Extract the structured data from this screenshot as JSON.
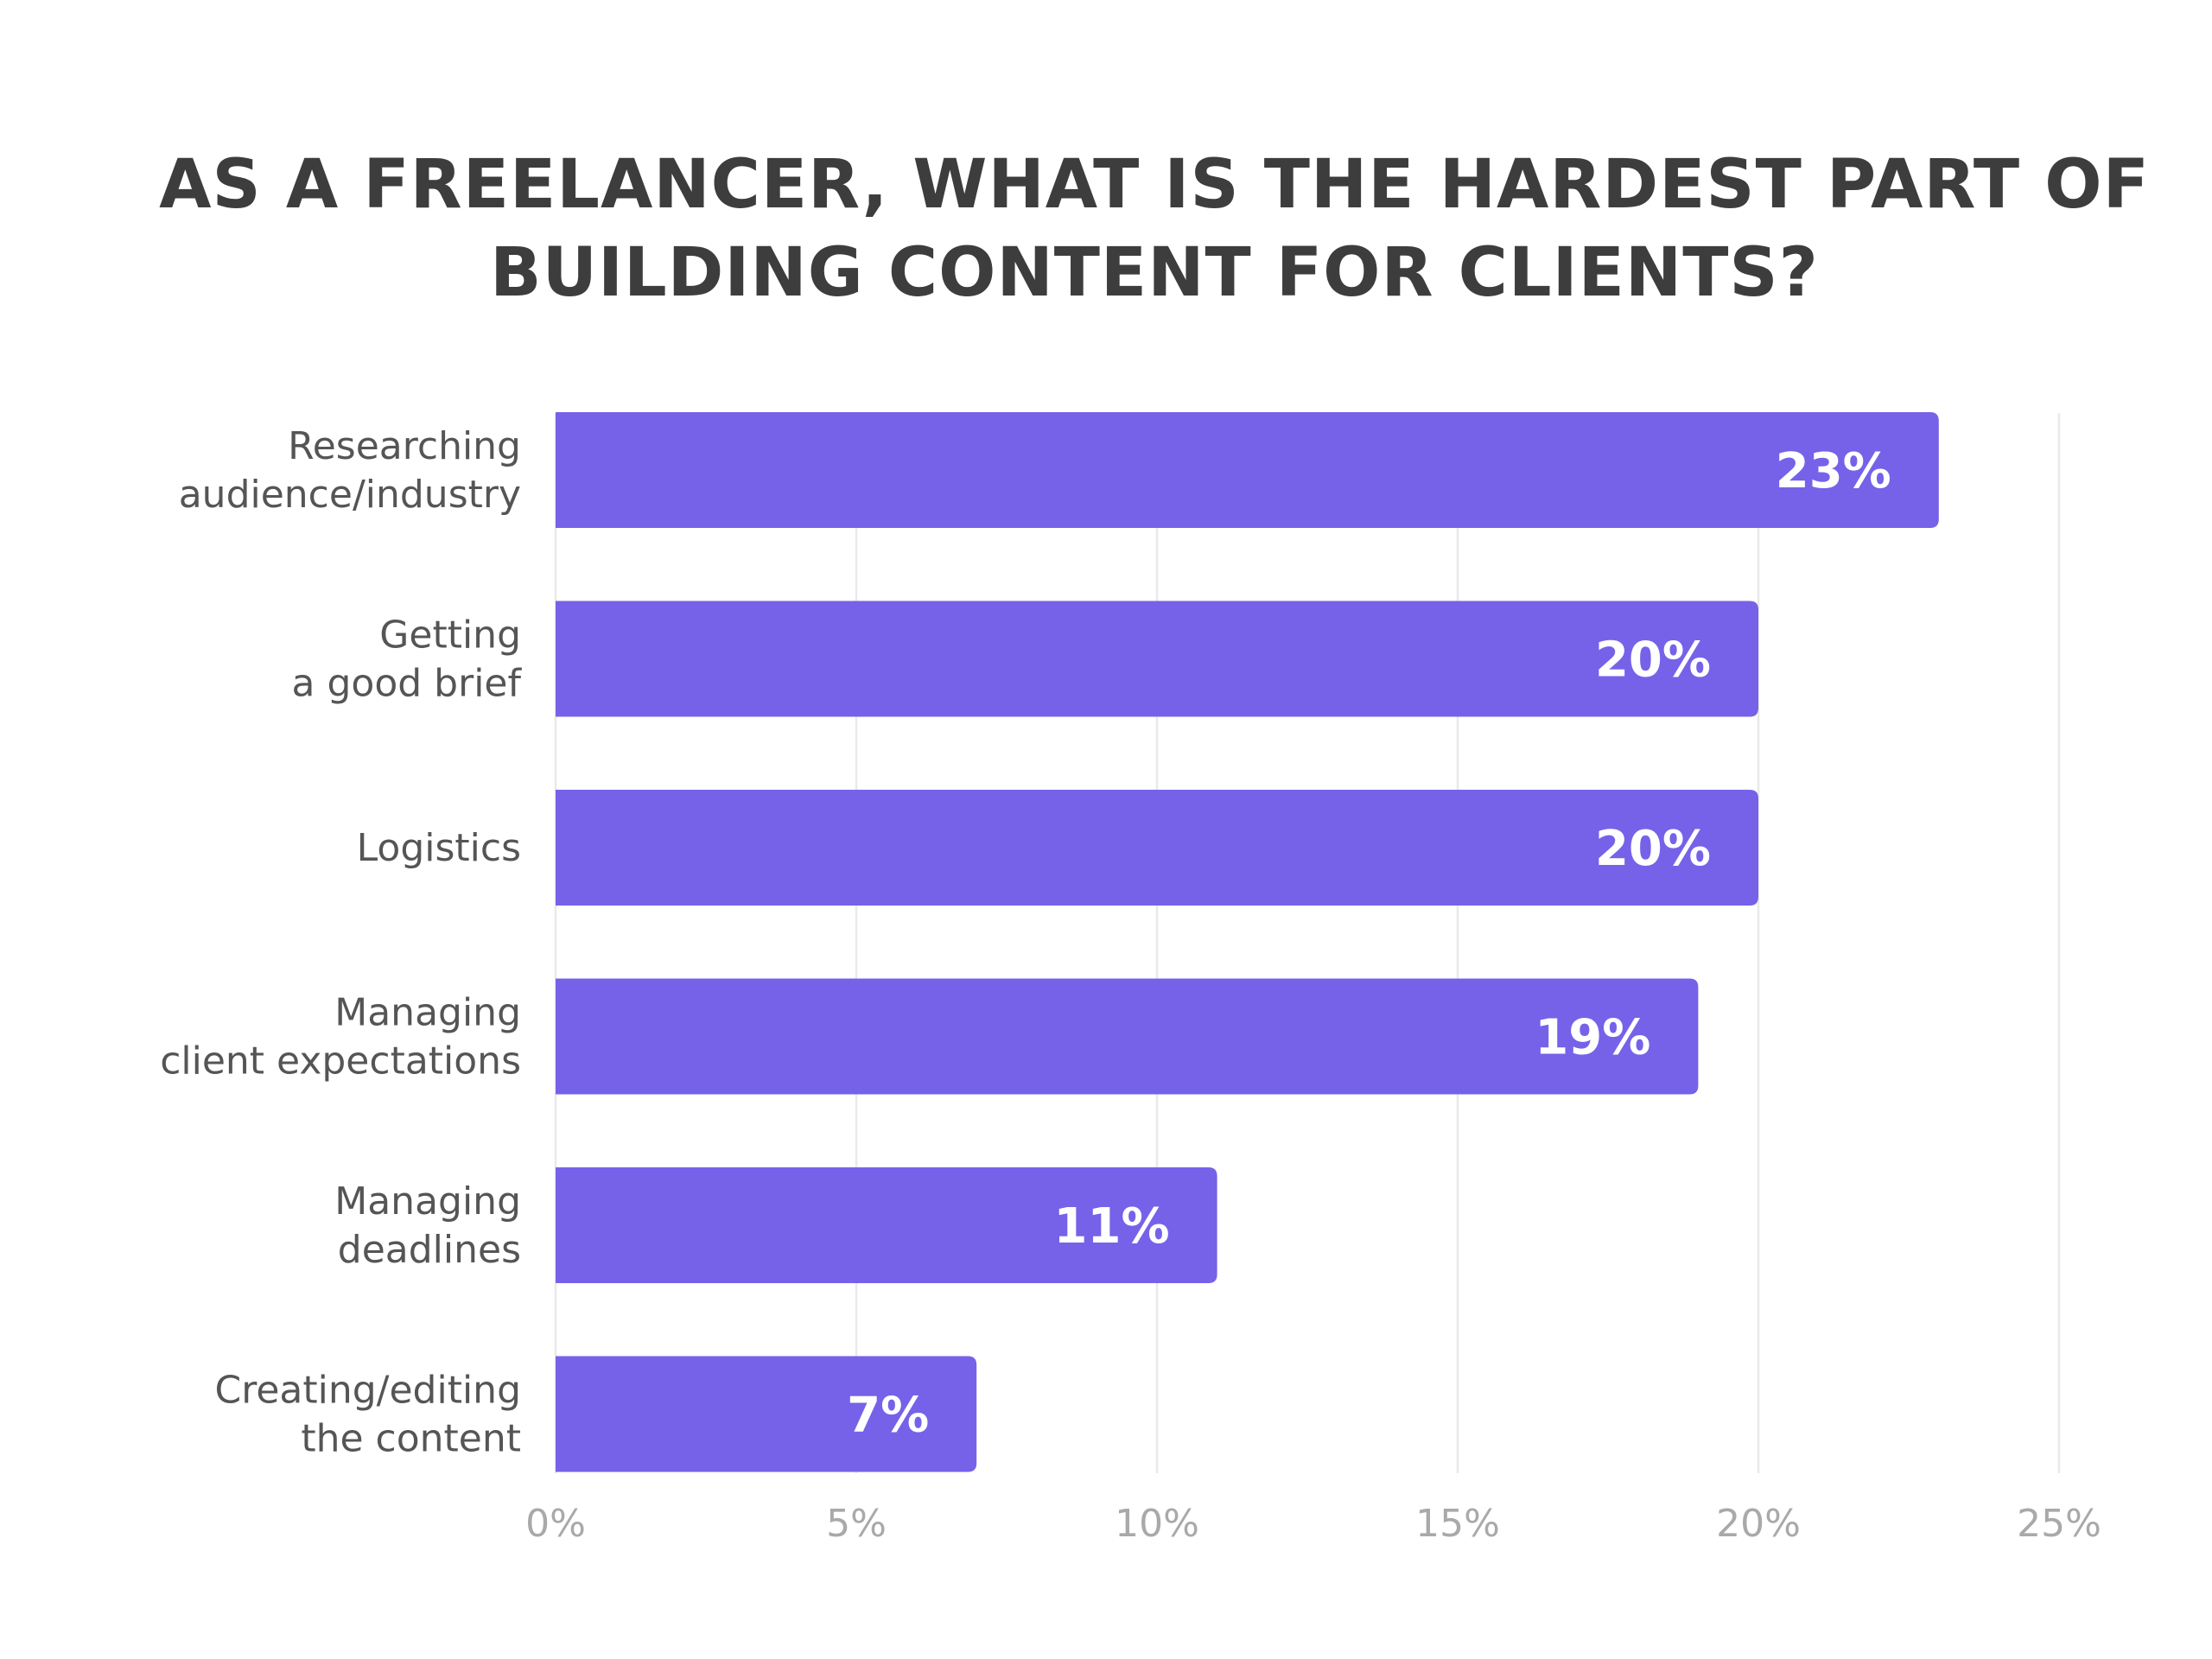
{
  "chart_data": {
    "type": "bar",
    "orientation": "horizontal",
    "title_lines": [
      "AS A FREELANCER, WHAT IS THE HARDEST PART OF",
      "BUILDING CONTENT FOR CLIENTS?"
    ],
    "categories": [
      [
        "Researching",
        "audience/industry"
      ],
      [
        "Getting",
        "a good brief"
      ],
      [
        "Logistics"
      ],
      [
        "Managing",
        "client expectations"
      ],
      [
        "Managing",
        "deadlines"
      ],
      [
        "Creating/editing",
        "the content"
      ]
    ],
    "values": [
      23,
      20,
      20,
      19,
      11,
      7
    ],
    "value_labels": [
      "23%",
      "20%",
      "20%",
      "19%",
      "11%",
      "7%"
    ],
    "xlim": [
      0,
      25
    ],
    "ticks": [
      0,
      5,
      10,
      15,
      20,
      25
    ],
    "tick_labels": [
      "0%",
      "5%",
      "10%",
      "15%",
      "20%",
      "25%"
    ],
    "grid": true,
    "bar_color": "#7562e9"
  }
}
